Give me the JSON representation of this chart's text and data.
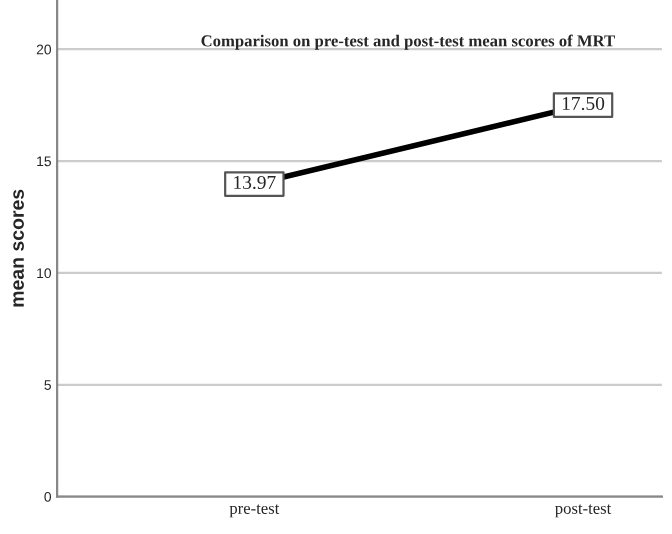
{
  "chart_data": {
    "type": "line",
    "title": "Comparison on pre-test and post-test mean scores of MRT",
    "ylabel": "mean scores",
    "categories": [
      "pre-test",
      "post-test"
    ],
    "series": [
      {
        "color": "#000000",
        "values": [
          13.97,
          17.5
        ],
        "value_labels": [
          "13.97",
          "17.50"
        ]
      }
    ],
    "ylim": [
      0,
      22.2
    ],
    "yticks": [
      0,
      5,
      10,
      15,
      20
    ],
    "grid": "y",
    "marker": "square",
    "line_style": "solid"
  }
}
